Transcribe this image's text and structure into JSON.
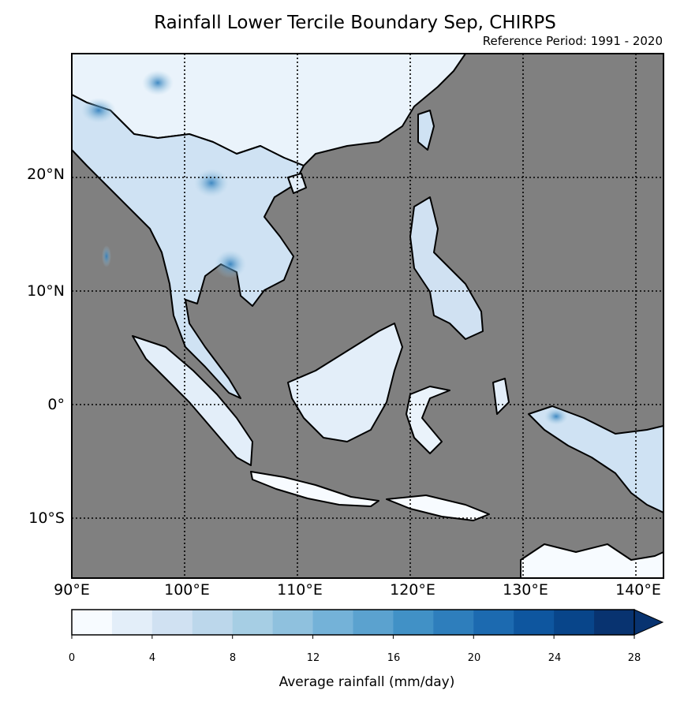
{
  "title": "Rainfall Lower Tercile Boundary Sep, CHIRPS",
  "subtitle": "Reference Period: 1991 - 2020",
  "map": {
    "extent": {
      "lon": [
        90,
        142
      ],
      "lat": [
        -15,
        30
      ]
    },
    "ocean_color": "#808080",
    "gridlines": "dotted",
    "lon_ticks": [
      {
        "value": 90,
        "label": "90°E"
      },
      {
        "value": 100,
        "label": "100°E"
      },
      {
        "value": 110,
        "label": "110°E"
      },
      {
        "value": 120,
        "label": "120°E"
      },
      {
        "value": 130,
        "label": "130°E"
      },
      {
        "value": 140,
        "label": "140°E"
      }
    ],
    "lat_ticks": [
      {
        "value": 20,
        "label": "20°N"
      },
      {
        "value": 10,
        "label": "10°N"
      },
      {
        "value": 0,
        "label": "0°"
      },
      {
        "value": -10,
        "label": "10°S"
      }
    ]
  },
  "colorbar": {
    "label": "Average rainfall (mm/day)",
    "min": 0,
    "max": 28,
    "step": 2,
    "extend": "max",
    "colors": [
      "#f7fbff",
      "#e3eef9",
      "#d0e1f2",
      "#bcd7eb",
      "#a6cee4",
      "#8fc1de",
      "#74b2d8",
      "#5ba2cf",
      "#4191c6",
      "#2e7ebc",
      "#1c6ab0",
      "#0e569f",
      "#08458a",
      "#083370"
    ],
    "ticks": [
      {
        "value": 0,
        "label": "0"
      },
      {
        "value": 4,
        "label": "4"
      },
      {
        "value": 8,
        "label": "8"
      },
      {
        "value": 12,
        "label": "12"
      },
      {
        "value": 16,
        "label": "16"
      },
      {
        "value": 20,
        "label": "20"
      },
      {
        "value": 24,
        "label": "24"
      },
      {
        "value": 28,
        "label": "28"
      }
    ]
  }
}
